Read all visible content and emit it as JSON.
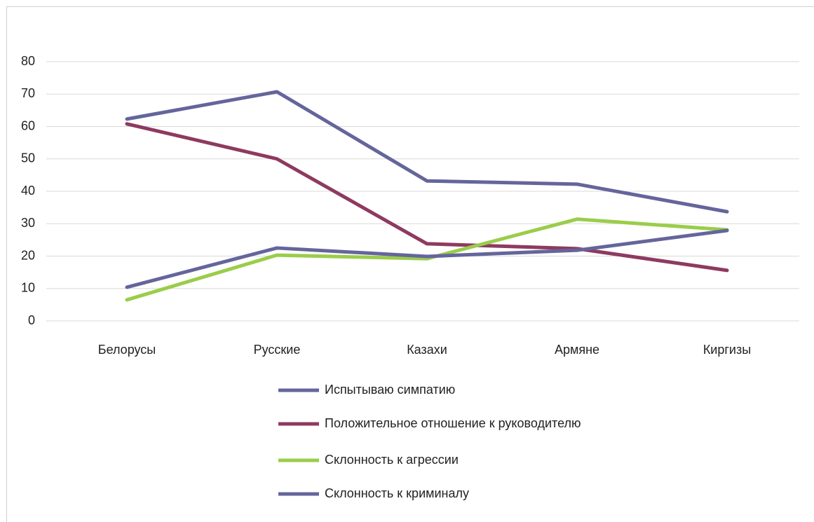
{
  "chart_data": {
    "type": "line",
    "categories": [
      "Белорусы",
      "Русские",
      "Казахи",
      "Армяне",
      "Киргизы"
    ],
    "series": [
      {
        "name": "Испытываю симпатию",
        "color": "#65659c",
        "values": [
          62.3,
          70.7,
          43.2,
          42.2,
          33.7
        ]
      },
      {
        "name": "Положительное отношение к руководителю",
        "color": "#8e3a60",
        "values": [
          60.8,
          50,
          23.8,
          22.3,
          15.6
        ]
      },
      {
        "name": "Склонность к агрессии",
        "color": "#9acd4a",
        "values": [
          6.5,
          20.3,
          19.2,
          31.4,
          28.1
        ]
      },
      {
        "name": "Склонность к криминалу",
        "color": "#65659c",
        "values": [
          10.4,
          22.5,
          19.9,
          21.8,
          27.9
        ]
      }
    ],
    "ylim": [
      0,
      80
    ],
    "yticks": [
      0,
      10,
      20,
      30,
      40,
      50,
      60,
      70,
      80
    ],
    "grid": true,
    "legend": "bottom"
  }
}
